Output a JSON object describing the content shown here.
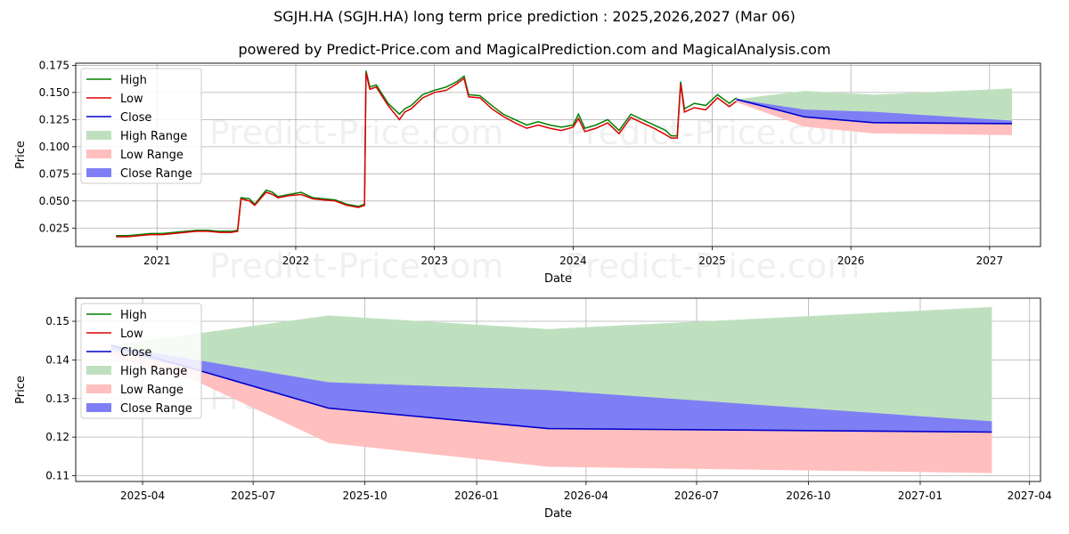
{
  "title": "SGJH.HA (SGJH.HA) long term price prediction : 2025,2026,2027 (Mar 06)",
  "subtitle": "powered by Predict-Price.com and MagicalPrediction.com and MagicalAnalysis.com",
  "watermark": "Predict-Price.com",
  "colors": {
    "high": "#008000",
    "low": "#dd0000",
    "close": "#0000cc",
    "high_range": "#bfe0bf",
    "low_range": "#ffbfbf",
    "close_range": "#7f7ff5"
  },
  "chart_data": [
    {
      "type": "line",
      "xlabel": "Date",
      "ylabel": "Price",
      "xlim": [
        "2020-06-01",
        "2027-05-15"
      ],
      "ylim": [
        0.008,
        0.177
      ],
      "x_ticks": [
        "2021",
        "2022",
        "2023",
        "2024",
        "2025",
        "2026",
        "2027"
      ],
      "y_ticks": [
        "0.025",
        "0.050",
        "0.075",
        "0.100",
        "0.125",
        "0.150",
        "0.175"
      ],
      "grid": true,
      "legend_position": "top-left",
      "legend": [
        "High",
        "Low",
        "Close",
        "High Range",
        "Low Range",
        "Close Range"
      ],
      "history": {
        "x": [
          "2020-09-15",
          "2020-10-15",
          "2020-11-15",
          "2020-12-15",
          "2021-01-15",
          "2021-02-15",
          "2021-03-15",
          "2021-04-15",
          "2021-05-15",
          "2021-06-15",
          "2021-07-15",
          "2021-08-01",
          "2021-08-10",
          "2021-09-01",
          "2021-09-15",
          "2021-10-15",
          "2021-11-01",
          "2021-11-15",
          "2021-12-15",
          "2022-01-15",
          "2022-02-15",
          "2022-03-15",
          "2022-04-15",
          "2022-05-15",
          "2022-06-15",
          "2022-07-01",
          "2022-07-05",
          "2022-07-15",
          "2022-08-01",
          "2022-09-01",
          "2022-10-01",
          "2022-10-15",
          "2022-11-01",
          "2022-12-01",
          "2023-01-01",
          "2023-02-01",
          "2023-03-01",
          "2023-03-20",
          "2023-04-01",
          "2023-05-01",
          "2023-06-01",
          "2023-07-01",
          "2023-08-01",
          "2023-09-01",
          "2023-10-01",
          "2023-11-01",
          "2023-12-01",
          "2024-01-01",
          "2024-01-15",
          "2024-02-01",
          "2024-03-01",
          "2024-04-01",
          "2024-05-01",
          "2024-06-01",
          "2024-07-01",
          "2024-08-01",
          "2024-09-01",
          "2024-09-15",
          "2024-10-01",
          "2024-10-10",
          "2024-10-20",
          "2024-11-15",
          "2024-12-15",
          "2025-01-15",
          "2025-02-15",
          "2025-03-06"
        ],
        "high": [
          0.018,
          0.018,
          0.019,
          0.02,
          0.02,
          0.021,
          0.022,
          0.023,
          0.023,
          0.022,
          0.022,
          0.023,
          0.053,
          0.052,
          0.047,
          0.06,
          0.058,
          0.054,
          0.056,
          0.058,
          0.053,
          0.052,
          0.051,
          0.047,
          0.045,
          0.047,
          0.17,
          0.155,
          0.157,
          0.14,
          0.13,
          0.135,
          0.138,
          0.148,
          0.152,
          0.155,
          0.16,
          0.165,
          0.148,
          0.147,
          0.138,
          0.13,
          0.125,
          0.12,
          0.123,
          0.12,
          0.118,
          0.12,
          0.13,
          0.117,
          0.12,
          0.125,
          0.115,
          0.13,
          0.125,
          0.12,
          0.115,
          0.11,
          0.11,
          0.16,
          0.135,
          0.14,
          0.138,
          0.148,
          0.14,
          0.145
        ],
        "low": [
          0.017,
          0.017,
          0.018,
          0.019,
          0.019,
          0.02,
          0.021,
          0.022,
          0.022,
          0.021,
          0.021,
          0.022,
          0.052,
          0.05,
          0.046,
          0.058,
          0.056,
          0.053,
          0.055,
          0.056,
          0.052,
          0.051,
          0.05,
          0.046,
          0.044,
          0.046,
          0.168,
          0.153,
          0.155,
          0.138,
          0.125,
          0.132,
          0.135,
          0.145,
          0.15,
          0.152,
          0.158,
          0.163,
          0.146,
          0.145,
          0.135,
          0.128,
          0.122,
          0.117,
          0.12,
          0.117,
          0.115,
          0.118,
          0.126,
          0.114,
          0.117,
          0.122,
          0.112,
          0.127,
          0.122,
          0.117,
          0.111,
          0.108,
          0.108,
          0.158,
          0.132,
          0.136,
          0.134,
          0.145,
          0.137,
          0.142
        ]
      },
      "forecast": {
        "x": [
          "2025-03-06",
          "2025-09-01",
          "2026-03-01",
          "2027-03-01"
        ],
        "close": [
          0.1438,
          0.1275,
          0.1222,
          0.1213
        ],
        "high_range": [
          [
            0.1438,
            0.1438
          ],
          [
            0.1285,
            0.1515
          ],
          [
            0.1235,
            0.148
          ],
          [
            0.1222,
            0.1537
          ]
        ],
        "low_range": [
          [
            0.141,
            0.1438
          ],
          [
            0.1185,
            0.1275
          ],
          [
            0.1123,
            0.1222
          ],
          [
            0.1107,
            0.1213
          ]
        ],
        "close_range": [
          [
            0.1425,
            0.1438
          ],
          [
            0.1275,
            0.1342
          ],
          [
            0.1222,
            0.1322
          ],
          [
            0.1213,
            0.1241
          ]
        ]
      }
    },
    {
      "type": "line",
      "xlabel": "Date",
      "ylabel": "Price",
      "xlim": [
        "2025-02-05",
        "2027-04-10"
      ],
      "ylim": [
        0.1085,
        0.156
      ],
      "x_ticks": [
        "2025-04",
        "2025-07",
        "2025-10",
        "2026-01",
        "2026-04",
        "2026-07",
        "2026-10",
        "2027-01",
        "2027-04"
      ],
      "y_ticks": [
        "0.11",
        "0.12",
        "0.13",
        "0.14",
        "0.15"
      ],
      "grid": true,
      "legend_position": "top-left",
      "legend": [
        "High",
        "Low",
        "Close",
        "High Range",
        "Low Range",
        "Close Range"
      ],
      "forecast": {
        "x": [
          "2025-03-06",
          "2025-05-15",
          "2025-09-01",
          "2026-03-01",
          "2027-03-01"
        ],
        "close": [
          0.1438,
          0.1375,
          0.1275,
          0.1222,
          0.1213
        ],
        "high_range": [
          [
            0.1438,
            0.1438
          ],
          [
            0.135,
            0.1468
          ],
          [
            0.1285,
            0.1515
          ],
          [
            0.1235,
            0.148
          ],
          [
            0.1222,
            0.1537
          ]
        ],
        "low_range": [
          [
            0.141,
            0.1438
          ],
          [
            0.1345,
            0.1375
          ],
          [
            0.1185,
            0.1275
          ],
          [
            0.1123,
            0.1222
          ],
          [
            0.1107,
            0.1213
          ]
        ],
        "close_range": [
          [
            0.1425,
            0.1438
          ],
          [
            0.1375,
            0.14
          ],
          [
            0.1275,
            0.1342
          ],
          [
            0.1222,
            0.1322
          ],
          [
            0.1213,
            0.1241
          ]
        ]
      }
    }
  ]
}
